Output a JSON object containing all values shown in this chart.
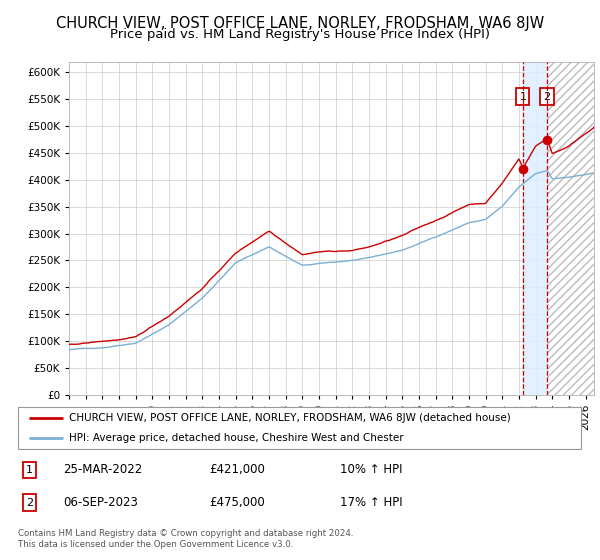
{
  "title": "CHURCH VIEW, POST OFFICE LANE, NORLEY, FRODSHAM, WA6 8JW",
  "subtitle": "Price paid vs. HM Land Registry's House Price Index (HPI)",
  "legend_line1": "CHURCH VIEW, POST OFFICE LANE, NORLEY, FRODSHAM, WA6 8JW (detached house)",
  "legend_line2": "HPI: Average price, detached house, Cheshire West and Chester",
  "annotation1_date": "25-MAR-2022",
  "annotation1_price": "£421,000",
  "annotation1_hpi": "10% ↑ HPI",
  "annotation2_date": "06-SEP-2023",
  "annotation2_price": "£475,000",
  "annotation2_hpi": "17% ↑ HPI",
  "marker1_year": 2022.23,
  "marker1_value": 421000,
  "marker2_year": 2023.68,
  "marker2_value": 475000,
  "vline1_year": 2022.23,
  "vline2_year": 2023.68,
  "ylim": [
    0,
    620000
  ],
  "xlim_start": 1995.0,
  "xlim_end": 2026.5,
  "red_line_color": "#cc0000",
  "blue_line_color": "#7bafd4",
  "vline_color": "#cc0000",
  "shade_color": "#ddeeff",
  "grid_color": "#cccccc",
  "background_color": "#ffffff",
  "title_fontsize": 10.5,
  "subtitle_fontsize": 9.5,
  "tick_fontsize": 7.5,
  "footer_text": "Contains HM Land Registry data © Crown copyright and database right 2024.\nThis data is licensed under the Open Government Licence v3.0."
}
